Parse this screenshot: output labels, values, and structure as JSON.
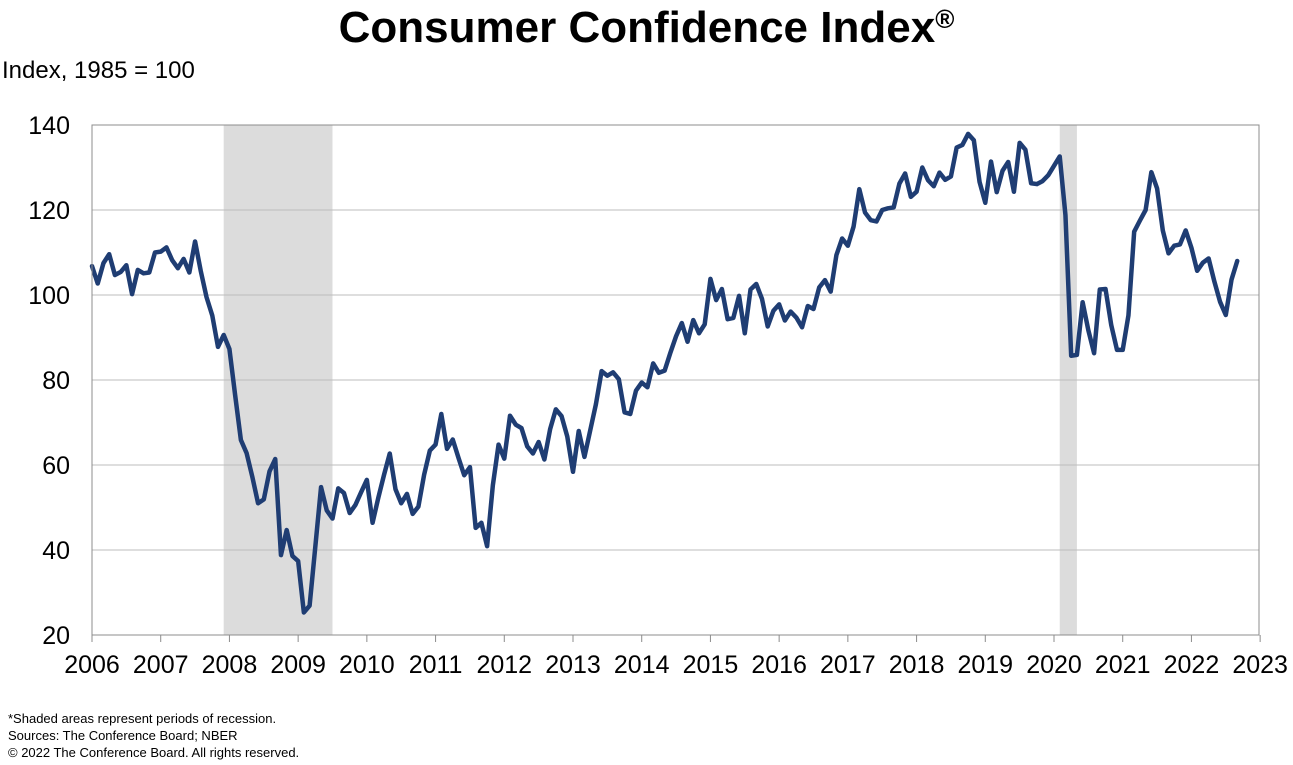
{
  "chart_data": {
    "type": "line",
    "title": "Consumer Confidence Index",
    "title_mark": "®",
    "ylabel": "Index, 1985 = 100",
    "xlabel": "",
    "ylim": [
      20,
      140
    ],
    "yticks": [
      20,
      40,
      60,
      80,
      100,
      120,
      140
    ],
    "xlim": [
      "2006-01",
      "2022-12"
    ],
    "xticks": [
      "2006",
      "2007",
      "2008",
      "2009",
      "2010",
      "2011",
      "2012",
      "2013",
      "2014",
      "2015",
      "2016",
      "2017",
      "2018",
      "2019",
      "2020",
      "2021",
      "2022",
      "2023"
    ],
    "grid": true,
    "legend": "none",
    "line_color": "#1f3d73",
    "recession_color": "#dcdcdc",
    "recessions": [
      {
        "start": "2007-12",
        "end": "2009-06"
      },
      {
        "start": "2020-02",
        "end": "2020-04"
      }
    ],
    "series": [
      {
        "start": "2006-01",
        "frequency": "monthly",
        "values": [
          106.8,
          102.7,
          107.5,
          109.6,
          104.7,
          105.4,
          107.0,
          100.2,
          105.9,
          105.1,
          105.3,
          110.0,
          110.2,
          111.2,
          108.2,
          106.3,
          108.5,
          105.3,
          112.6,
          105.6,
          99.5,
          95.2,
          87.8,
          90.6,
          87.3,
          76.4,
          65.9,
          62.8,
          57.2,
          51.0,
          51.9,
          58.5,
          61.4,
          38.8,
          44.7,
          38.6,
          37.4,
          25.3,
          26.9,
          40.8,
          54.8,
          49.3,
          47.4,
          54.5,
          53.4,
          48.7,
          50.6,
          53.6,
          56.5,
          46.4,
          52.3,
          57.7,
          62.7,
          54.3,
          51.0,
          53.2,
          48.5,
          50.2,
          57.7,
          63.4,
          64.8,
          72.0,
          63.8,
          66.0,
          61.7,
          57.6,
          59.5,
          45.2,
          46.4,
          40.9,
          55.2,
          64.8,
          61.5,
          71.6,
          69.5,
          68.7,
          64.4,
          62.7,
          65.4,
          61.3,
          68.4,
          73.1,
          71.5,
          66.7,
          58.4,
          68.0,
          61.9,
          68.1,
          74.3,
          82.1,
          81.0,
          81.8,
          80.2,
          72.4,
          72.0,
          77.5,
          79.4,
          78.3,
          83.9,
          81.7,
          82.2,
          86.4,
          90.3,
          93.4,
          89.0,
          94.1,
          91.0,
          93.1,
          103.8,
          98.8,
          101.4,
          94.3,
          94.6,
          99.8,
          91.0,
          101.3,
          102.6,
          99.1,
          92.6,
          96.3,
          97.8,
          94.0,
          96.1,
          94.7,
          92.4,
          97.4,
          96.7,
          101.8,
          103.5,
          100.8,
          109.4,
          113.3,
          111.6,
          116.1,
          124.9,
          119.4,
          117.6,
          117.3,
          120.0,
          120.4,
          120.6,
          126.2,
          128.6,
          123.1,
          124.3,
          130.0,
          127.0,
          125.6,
          128.8,
          127.1,
          127.9,
          134.7,
          135.3,
          137.9,
          136.4,
          126.6,
          121.7,
          131.4,
          124.2,
          129.2,
          131.3,
          124.3,
          135.8,
          134.2,
          126.3,
          126.1,
          126.8,
          128.2,
          130.4,
          132.6,
          118.8,
          85.7,
          85.9,
          98.3,
          91.7,
          86.3,
          101.3,
          101.4,
          92.9,
          87.1,
          87.1,
          95.2,
          114.9,
          117.5,
          120.0,
          128.9,
          125.1,
          115.2,
          109.8,
          111.6,
          111.9,
          115.2,
          111.1,
          105.7,
          107.6,
          108.6,
          103.2,
          98.4,
          95.3,
          103.6,
          108.0
        ]
      }
    ]
  },
  "notes": {
    "shading": "*Shaded areas represent periods of recession.",
    "sources": "Sources: The Conference Board; NBER",
    "copyright": "© 2022 The Conference Board. All rights reserved."
  }
}
